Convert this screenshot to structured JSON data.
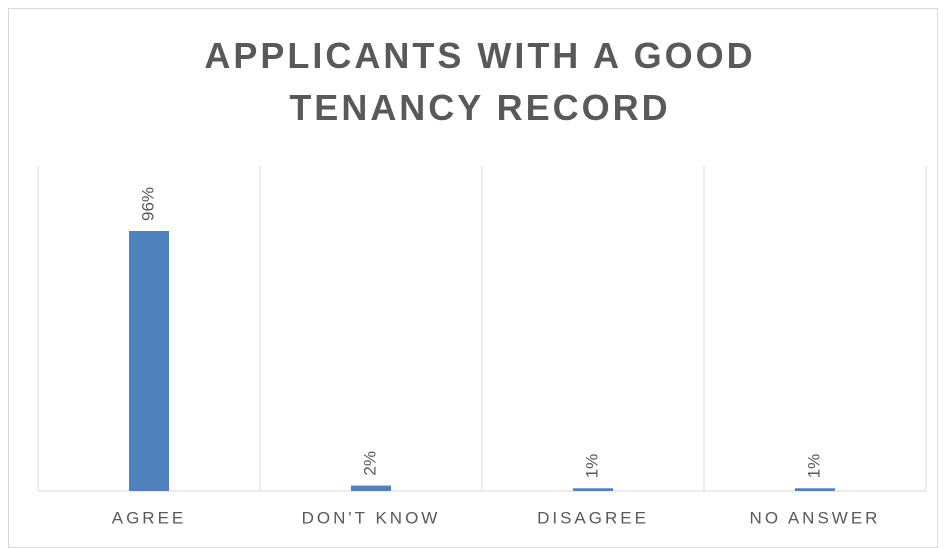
{
  "chart_data": {
    "type": "bar",
    "title": "APPLICANTS WITH A GOOD TENANCY RECORD",
    "categories": [
      "AGREE",
      "DON'T KNOW",
      "DISAGREE",
      "NO ANSWER"
    ],
    "values": [
      96,
      2,
      1,
      1
    ],
    "value_labels": [
      "96%",
      "2%",
      "1%",
      "1%"
    ],
    "color": "#4f81bd",
    "ylim": [
      0,
      120
    ]
  }
}
